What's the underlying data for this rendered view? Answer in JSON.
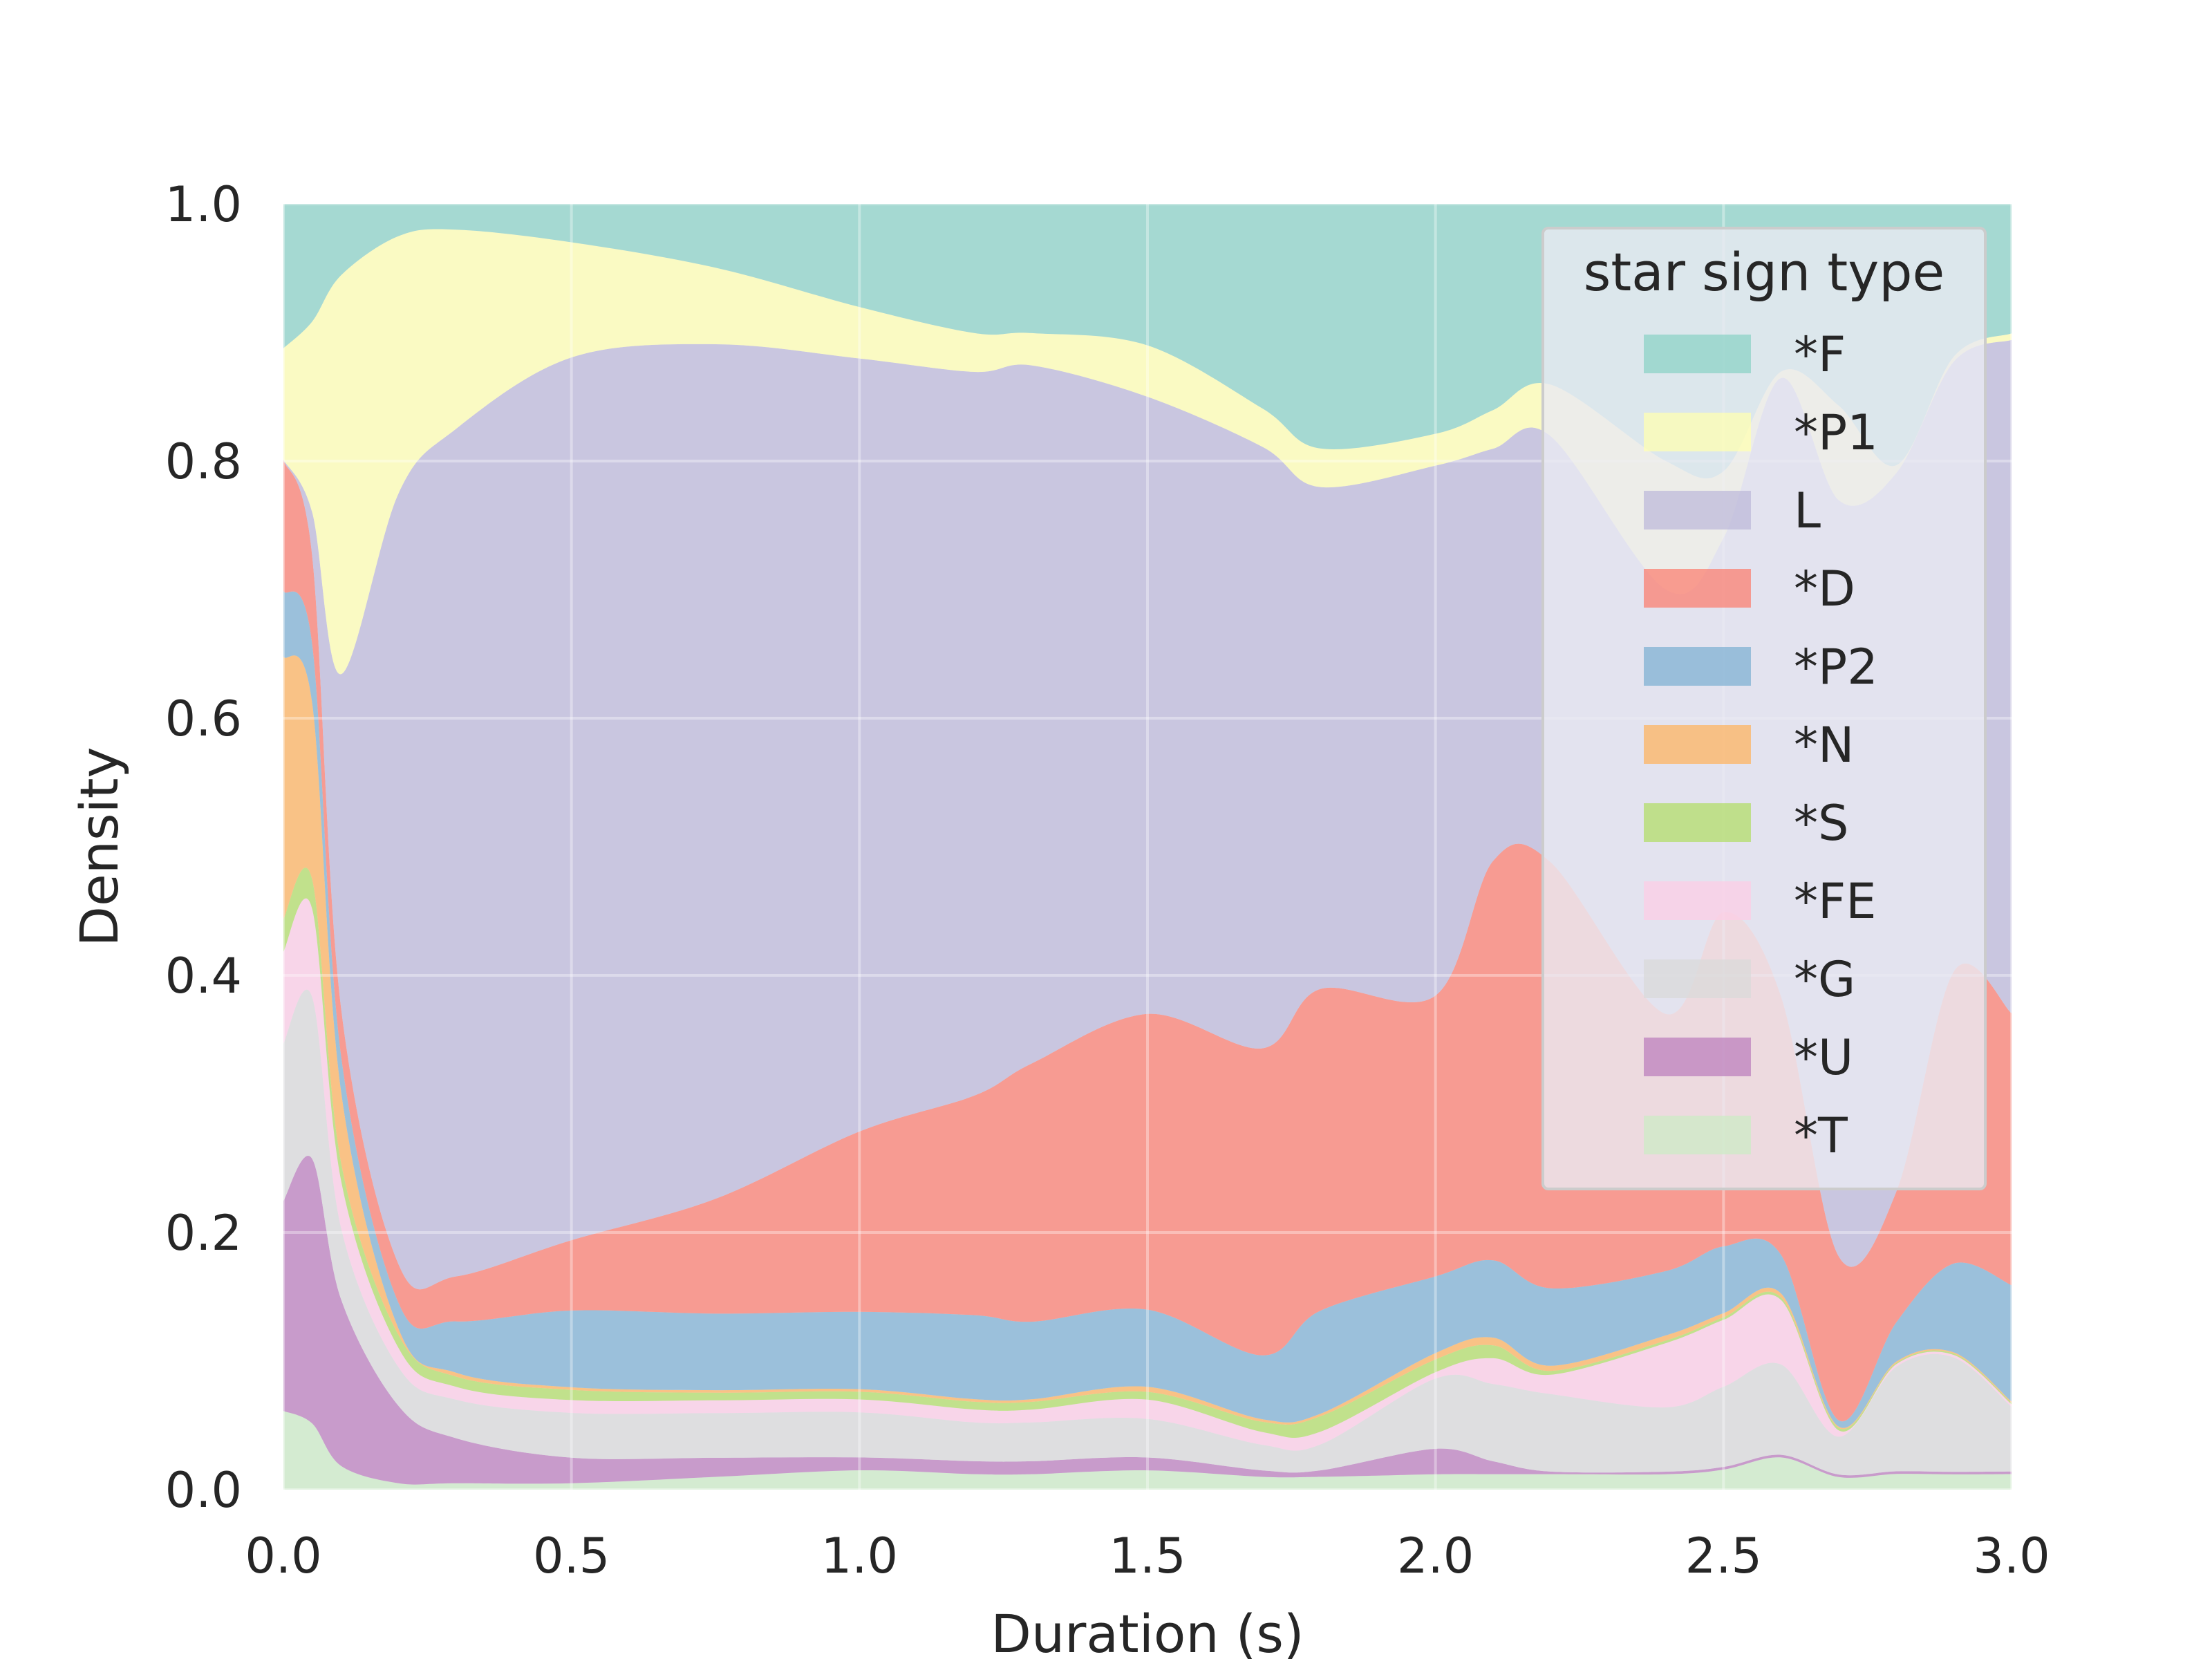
{
  "chart_data": {
    "type": "area",
    "stacked": "fill",
    "xlabel": "Duration (s)",
    "ylabel": "Density",
    "xlim": [
      0.0,
      3.0
    ],
    "ylim": [
      0.0,
      1.0
    ],
    "xticks": [
      "0.0",
      "0.5",
      "1.0",
      "1.5",
      "2.0",
      "2.5",
      "3.0"
    ],
    "yticks": [
      "0.0",
      "0.2",
      "0.4",
      "0.6",
      "0.8",
      "1.0"
    ],
    "grid": true,
    "legend": {
      "title": "star sign type",
      "placement": "upper-right"
    },
    "x": [
      0.0,
      0.05,
      0.1,
      0.2,
      0.3,
      0.5,
      0.75,
      1.0,
      1.2,
      1.3,
      1.5,
      1.7,
      1.8,
      2.0,
      2.1,
      2.2,
      2.4,
      2.5,
      2.6,
      2.7,
      2.8,
      2.9,
      3.0
    ],
    "series": [
      {
        "name": "*T",
        "color": "#ccebc5",
        "values": [
          0.06,
          0.045,
          0.02,
          0.005,
          0.005,
          0.005,
          0.01,
          0.015,
          0.012,
          0.012,
          0.015,
          0.01,
          0.01,
          0.012,
          0.012,
          0.012,
          0.012,
          0.015,
          0.025,
          0.01,
          0.012,
          0.012,
          0.012
        ]
      },
      {
        "name": "*U",
        "color": "#bc80bd",
        "values": [
          0.16,
          0.18,
          0.14,
          0.06,
          0.035,
          0.02,
          0.015,
          0.01,
          0.01,
          0.01,
          0.01,
          0.005,
          0.005,
          0.02,
          0.01,
          0.002,
          0.002,
          0.002,
          0.002,
          0.002,
          0.002,
          0.002,
          0.002
        ]
      },
      {
        "name": "*G",
        "color": "#d9d9d9",
        "values": [
          0.12,
          0.11,
          0.06,
          0.03,
          0.03,
          0.035,
          0.035,
          0.035,
          0.03,
          0.03,
          0.03,
          0.02,
          0.02,
          0.055,
          0.06,
          0.06,
          0.05,
          0.06,
          0.07,
          0.03,
          0.08,
          0.09,
          0.05
        ]
      },
      {
        "name": "*FE",
        "color": "#fccde5",
        "values": [
          0.07,
          0.06,
          0.04,
          0.015,
          0.01,
          0.01,
          0.01,
          0.01,
          0.01,
          0.01,
          0.015,
          0.01,
          0.01,
          0.005,
          0.02,
          0.015,
          0.05,
          0.05,
          0.05,
          0.005,
          0.002,
          0.002,
          0.002
        ]
      },
      {
        "name": "*S",
        "color": "#b3de69",
        "values": [
          0.025,
          0.02,
          0.015,
          0.01,
          0.008,
          0.008,
          0.006,
          0.006,
          0.006,
          0.006,
          0.006,
          0.008,
          0.012,
          0.01,
          0.01,
          0.003,
          0.002,
          0.002,
          0.002,
          0.002,
          0.001,
          0.001,
          0.001
        ]
      },
      {
        "name": "*N",
        "color": "#fdb462",
        "values": [
          0.2,
          0.12,
          0.06,
          0.005,
          0.003,
          0.002,
          0.002,
          0.002,
          0.002,
          0.002,
          0.004,
          0.002,
          0.002,
          0.005,
          0.006,
          0.004,
          0.004,
          0.003,
          0.003,
          0.001,
          0.001,
          0.001,
          0.001
        ]
      },
      {
        "name": "*P2",
        "color": "#80b1d3",
        "values": [
          0.05,
          0.04,
          0.03,
          0.02,
          0.04,
          0.06,
          0.06,
          0.06,
          0.065,
          0.06,
          0.06,
          0.05,
          0.08,
          0.06,
          0.06,
          0.06,
          0.05,
          0.05,
          0.03,
          0.005,
          0.03,
          0.07,
          0.09
        ]
      },
      {
        "name": "*D",
        "color": "#fb8072",
        "values": [
          0.1,
          0.06,
          0.04,
          0.03,
          0.035,
          0.055,
          0.09,
          0.14,
          0.17,
          0.2,
          0.23,
          0.24,
          0.25,
          0.22,
          0.31,
          0.33,
          0.2,
          0.25,
          0.2,
          0.13,
          0.1,
          0.23,
          0.21
        ]
      },
      {
        "name": "L",
        "color": "#bebada",
        "values": [
          0.0,
          0.03,
          0.28,
          0.6,
          0.66,
          0.69,
          0.67,
          0.6,
          0.56,
          0.54,
          0.48,
          0.47,
          0.39,
          0.415,
          0.32,
          0.33,
          0.33,
          0.28,
          0.48,
          0.6,
          0.55,
          0.48,
          0.52
        ]
      },
      {
        "name": "*P1",
        "color": "#ffffb3",
        "values": [
          0.085,
          0.13,
          0.335,
          0.2,
          0.155,
          0.09,
          0.06,
          0.04,
          0.03,
          0.025,
          0.04,
          0.03,
          0.03,
          0.025,
          0.03,
          0.04,
          0.1,
          0.05,
          0.005,
          0.075,
          0.006,
          0.004,
          0.005
        ]
      },
      {
        "name": "*F",
        "color": "#8dd3c7",
        "values": [
          0.11,
          0.08,
          0.06,
          0.025,
          0.02,
          0.03,
          0.05,
          0.08,
          0.1,
          0.1,
          0.11,
          0.16,
          0.19,
          0.18,
          0.16,
          0.14,
          0.2,
          0.2,
          0.13,
          0.16,
          0.2,
          0.12,
          0.1
        ]
      }
    ]
  }
}
